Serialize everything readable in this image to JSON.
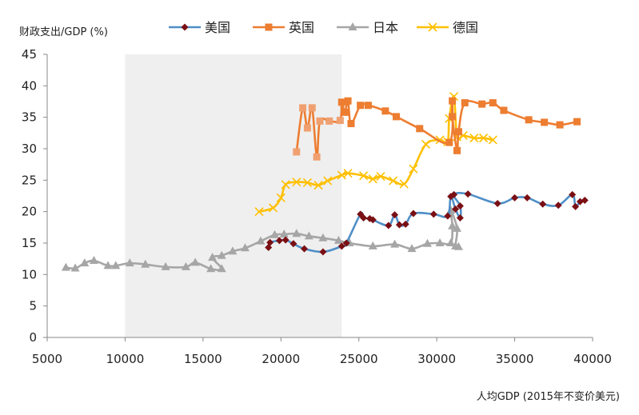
{
  "chart_data": {
    "type": "line",
    "title": "",
    "ylabel": "财政支出/GDP (%)",
    "xlabel": "人均GDP (2015年不变价美元)",
    "xlim": [
      5000,
      40000
    ],
    "ylim": [
      0,
      45
    ],
    "xticks": [
      5000,
      10000,
      15000,
      20000,
      25000,
      30000,
      35000,
      40000
    ],
    "yticks": [
      0,
      5,
      10,
      15,
      20,
      25,
      30,
      35,
      40,
      45
    ],
    "shaded_region": [
      10000,
      23900
    ],
    "grid": false,
    "legend_position": "top",
    "series": [
      {
        "name": "美国",
        "color": "#4f8fc7",
        "marker": "diamond",
        "marker_color": "#7a0f14",
        "points": [
          [
            19200,
            14.3
          ],
          [
            19300,
            15.1
          ],
          [
            19900,
            15.4
          ],
          [
            20300,
            15.5
          ],
          [
            20800,
            14.9
          ],
          [
            21500,
            14.1
          ],
          [
            22700,
            13.6
          ],
          [
            23900,
            14.5
          ],
          [
            24200,
            15.0
          ],
          [
            25100,
            19.6
          ],
          [
            25300,
            19.0
          ],
          [
            25700,
            18.9
          ],
          [
            25900,
            18.7
          ],
          [
            26900,
            17.8
          ],
          [
            27300,
            19.5
          ],
          [
            27600,
            17.9
          ],
          [
            28000,
            18.0
          ],
          [
            28500,
            19.7
          ],
          [
            29800,
            19.6
          ],
          [
            30700,
            19.3
          ],
          [
            30900,
            22.4
          ],
          [
            31200,
            20.4
          ],
          [
            31500,
            19.0
          ],
          [
            31500,
            20.9
          ],
          [
            31100,
            22.7
          ],
          [
            32000,
            22.8
          ],
          [
            33900,
            21.3
          ],
          [
            35000,
            22.2
          ],
          [
            35800,
            22.2
          ],
          [
            36800,
            21.2
          ],
          [
            37800,
            21.0
          ],
          [
            38700,
            22.7
          ],
          [
            38900,
            20.8
          ],
          [
            39200,
            21.6
          ],
          [
            39500,
            21.8
          ]
        ]
      },
      {
        "name": "英国",
        "color": "#ed7d31",
        "marker": "square",
        "marker_color": "#ed7d31",
        "points": [
          [
            21000,
            29.5
          ],
          [
            21400,
            36.5
          ],
          [
            21700,
            33.3
          ],
          [
            22000,
            36.5
          ],
          [
            22300,
            28.7
          ],
          [
            22500,
            34.4
          ],
          [
            23100,
            34.4
          ],
          [
            23800,
            34.5
          ],
          [
            23900,
            37.4
          ],
          [
            24100,
            35.8
          ],
          [
            24300,
            37.6
          ],
          [
            24500,
            34.0
          ],
          [
            25100,
            36.9
          ],
          [
            25600,
            36.9
          ],
          [
            26700,
            36.0
          ],
          [
            27400,
            35.1
          ],
          [
            28900,
            33.2
          ],
          [
            30800,
            31.0
          ],
          [
            31000,
            37.6
          ],
          [
            31000,
            35.1
          ],
          [
            31300,
            29.7
          ],
          [
            31400,
            32.7
          ],
          [
            31800,
            37.3
          ],
          [
            32900,
            37.1
          ],
          [
            33600,
            37.3
          ],
          [
            34300,
            36.1
          ],
          [
            35900,
            34.6
          ],
          [
            36900,
            34.2
          ],
          [
            37900,
            33.8
          ],
          [
            39000,
            34.3
          ]
        ]
      },
      {
        "name": "日本",
        "color": "#a6a6a6",
        "marker": "triangle",
        "marker_color": "#a6a6a6",
        "points": [
          [
            6200,
            11.1
          ],
          [
            6800,
            11.0
          ],
          [
            7400,
            11.8
          ],
          [
            8000,
            12.2
          ],
          [
            8900,
            11.4
          ],
          [
            9400,
            11.4
          ],
          [
            10300,
            11.8
          ],
          [
            11300,
            11.6
          ],
          [
            12600,
            11.2
          ],
          [
            13900,
            11.2
          ],
          [
            14500,
            11.9
          ],
          [
            15500,
            10.9
          ],
          [
            16200,
            10.9
          ],
          [
            15600,
            12.7
          ],
          [
            16200,
            13.0
          ],
          [
            16900,
            13.7
          ],
          [
            17700,
            14.2
          ],
          [
            18700,
            15.3
          ],
          [
            19600,
            16.3
          ],
          [
            20200,
            16.4
          ],
          [
            21000,
            16.5
          ],
          [
            21800,
            16.1
          ],
          [
            22700,
            15.8
          ],
          [
            23700,
            15.4
          ],
          [
            24400,
            15.0
          ],
          [
            25900,
            14.5
          ],
          [
            27300,
            14.8
          ],
          [
            28400,
            14.1
          ],
          [
            29400,
            14.9
          ],
          [
            30200,
            15.0
          ],
          [
            30900,
            15.0
          ],
          [
            31000,
            17.7
          ],
          [
            30900,
            20.2
          ],
          [
            31300,
            17.3
          ],
          [
            31200,
            14.5
          ],
          [
            31400,
            14.4
          ]
        ]
      },
      {
        "name": "德国",
        "color": "#ffc000",
        "marker": "x",
        "marker_color": "#ffc000",
        "points": [
          [
            18600,
            20.0
          ],
          [
            19500,
            20.6
          ],
          [
            20000,
            22.2
          ],
          [
            20300,
            24.3
          ],
          [
            21000,
            24.7
          ],
          [
            21700,
            24.6
          ],
          [
            22400,
            24.2
          ],
          [
            23000,
            24.9
          ],
          [
            23900,
            25.8
          ],
          [
            24300,
            26.1
          ],
          [
            25300,
            25.7
          ],
          [
            25900,
            25.2
          ],
          [
            26400,
            25.6
          ],
          [
            27200,
            24.9
          ],
          [
            27900,
            24.4
          ],
          [
            28500,
            26.8
          ],
          [
            29300,
            30.7
          ],
          [
            30200,
            31.4
          ],
          [
            30700,
            31.1
          ],
          [
            30800,
            34.8
          ],
          [
            31100,
            38.3
          ],
          [
            31300,
            31.9
          ],
          [
            31700,
            32.1
          ],
          [
            32400,
            31.7
          ],
          [
            33000,
            31.7
          ],
          [
            33600,
            31.4
          ]
        ]
      }
    ]
  }
}
